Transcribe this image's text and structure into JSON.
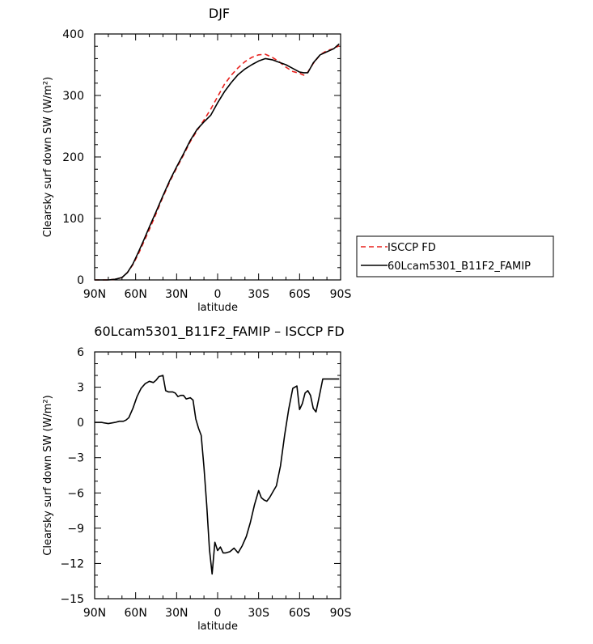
{
  "chart_data": [
    {
      "type": "line",
      "title": "DJF",
      "xlabel": "latitude",
      "ylabel": "Clearsky surf down SW (W/m²)",
      "xlim": [
        -90,
        90
      ],
      "ylim": [
        0,
        400
      ],
      "x_tick_values": [
        -90,
        -60,
        -30,
        0,
        30,
        60,
        90
      ],
      "x_tick_labels": [
        "90N",
        "60N",
        "30N",
        "0",
        "30S",
        "60S",
        "90S"
      ],
      "y_tick_values": [
        0,
        100,
        200,
        300,
        400
      ],
      "y_tick_labels": [
        "0",
        "100",
        "200",
        "300",
        "400"
      ],
      "legend": {
        "placement": "right",
        "entries": [
          "ISCCP FD",
          "60Lcam5301_B11F2_FAMIP"
        ]
      },
      "series": [
        {
          "name": "ISCCP FD",
          "color": "#e8201c",
          "dash": "dashed",
          "x": [
            -90,
            -85,
            -80,
            -75,
            -70,
            -66,
            -62,
            -58,
            -54,
            -50,
            -45,
            -40,
            -35,
            -30,
            -25,
            -20,
            -15,
            -10,
            -5,
            0,
            5,
            10,
            15,
            20,
            25,
            30,
            35,
            40,
            45,
            50,
            55,
            60,
            63,
            66,
            70,
            75,
            80,
            85,
            89
          ],
          "values": [
            0,
            0,
            0,
            1,
            4,
            12,
            25,
            42,
            62,
            82,
            108,
            135,
            160,
            182,
            203,
            225,
            243,
            260,
            278,
            298,
            318,
            333,
            345,
            355,
            362,
            366,
            367,
            362,
            355,
            346,
            339,
            336,
            333,
            338,
            352,
            366,
            373,
            376,
            381
          ]
        },
        {
          "name": "60Lcam5301_B11F2_FAMIP",
          "color": "#000000",
          "dash": "solid",
          "x": [
            -90,
            -85,
            -80,
            -75,
            -70,
            -66,
            -62,
            -58,
            -54,
            -50,
            -45,
            -40,
            -35,
            -30,
            -25,
            -20,
            -15,
            -10,
            -5,
            0,
            5,
            10,
            15,
            20,
            25,
            30,
            35,
            40,
            45,
            50,
            55,
            60,
            63,
            66,
            70,
            75,
            80,
            85,
            89
          ],
          "values": [
            0,
            0,
            0,
            1,
            4,
            12,
            26,
            45,
            65,
            86,
            111,
            137,
            162,
            184,
            205,
            227,
            245,
            257,
            268,
            288,
            306,
            321,
            334,
            343,
            350,
            356,
            360,
            358,
            354,
            350,
            344,
            338,
            337,
            337,
            353,
            366,
            371,
            376,
            384
          ]
        }
      ]
    },
    {
      "type": "line",
      "title": "60Lcam5301_B11F2_FAMIP – ISCCP FD",
      "xlabel": "latitude",
      "ylabel": "Clearsky surf down SW (W/m²)",
      "xlim": [
        -90,
        90
      ],
      "ylim": [
        -15,
        6
      ],
      "x_tick_values": [
        -90,
        -60,
        -30,
        0,
        30,
        60,
        90
      ],
      "x_tick_labels": [
        "90N",
        "60N",
        "30N",
        "0",
        "30S",
        "60S",
        "90S"
      ],
      "y_tick_values": [
        -15,
        -12,
        -9,
        -6,
        -3,
        0,
        3,
        6
      ],
      "y_tick_labels": [
        "−15",
        "−12",
        "−9",
        "−6",
        "−3",
        "0",
        "3",
        "6"
      ],
      "series": [
        {
          "color": "#000000",
          "dash": "solid",
          "x": [
            -90,
            -85,
            -80,
            -75,
            -72,
            -69,
            -67,
            -65,
            -62,
            -59,
            -56,
            -53,
            -50,
            -47,
            -45,
            -43,
            -40,
            -38,
            -36,
            -33,
            -31,
            -29,
            -27,
            -25,
            -23,
            -20,
            -18,
            -16,
            -14,
            -12,
            -10,
            -8,
            -6,
            -4,
            -2,
            0,
            2,
            4,
            6,
            9,
            12,
            15,
            18,
            21,
            24,
            27,
            30,
            32,
            34,
            36,
            38,
            41,
            43,
            46,
            49,
            52,
            55,
            58,
            60,
            62,
            64,
            66,
            68,
            70,
            72,
            74,
            77,
            80,
            83,
            86,
            89
          ],
          "values": [
            0.0,
            0.0,
            -0.1,
            0.0,
            0.1,
            0.1,
            0.2,
            0.4,
            1.2,
            2.2,
            2.9,
            3.3,
            3.5,
            3.4,
            3.6,
            3.9,
            4.0,
            2.7,
            2.6,
            2.6,
            2.5,
            2.2,
            2.3,
            2.3,
            2.0,
            2.1,
            1.9,
            0.3,
            -0.5,
            -1.1,
            -3.8,
            -7.0,
            -10.8,
            -12.9,
            -10.2,
            -10.9,
            -10.6,
            -11.1,
            -11.1,
            -11.0,
            -10.7,
            -11.1,
            -10.5,
            -9.7,
            -8.5,
            -7.0,
            -5.8,
            -6.4,
            -6.6,
            -6.7,
            -6.4,
            -5.8,
            -5.4,
            -3.7,
            -1.1,
            1.1,
            2.9,
            3.1,
            1.1,
            1.6,
            2.5,
            2.7,
            2.3,
            1.2,
            0.9,
            2.0,
            3.7,
            3.7,
            3.7,
            3.7,
            3.7
          ]
        }
      ]
    }
  ]
}
